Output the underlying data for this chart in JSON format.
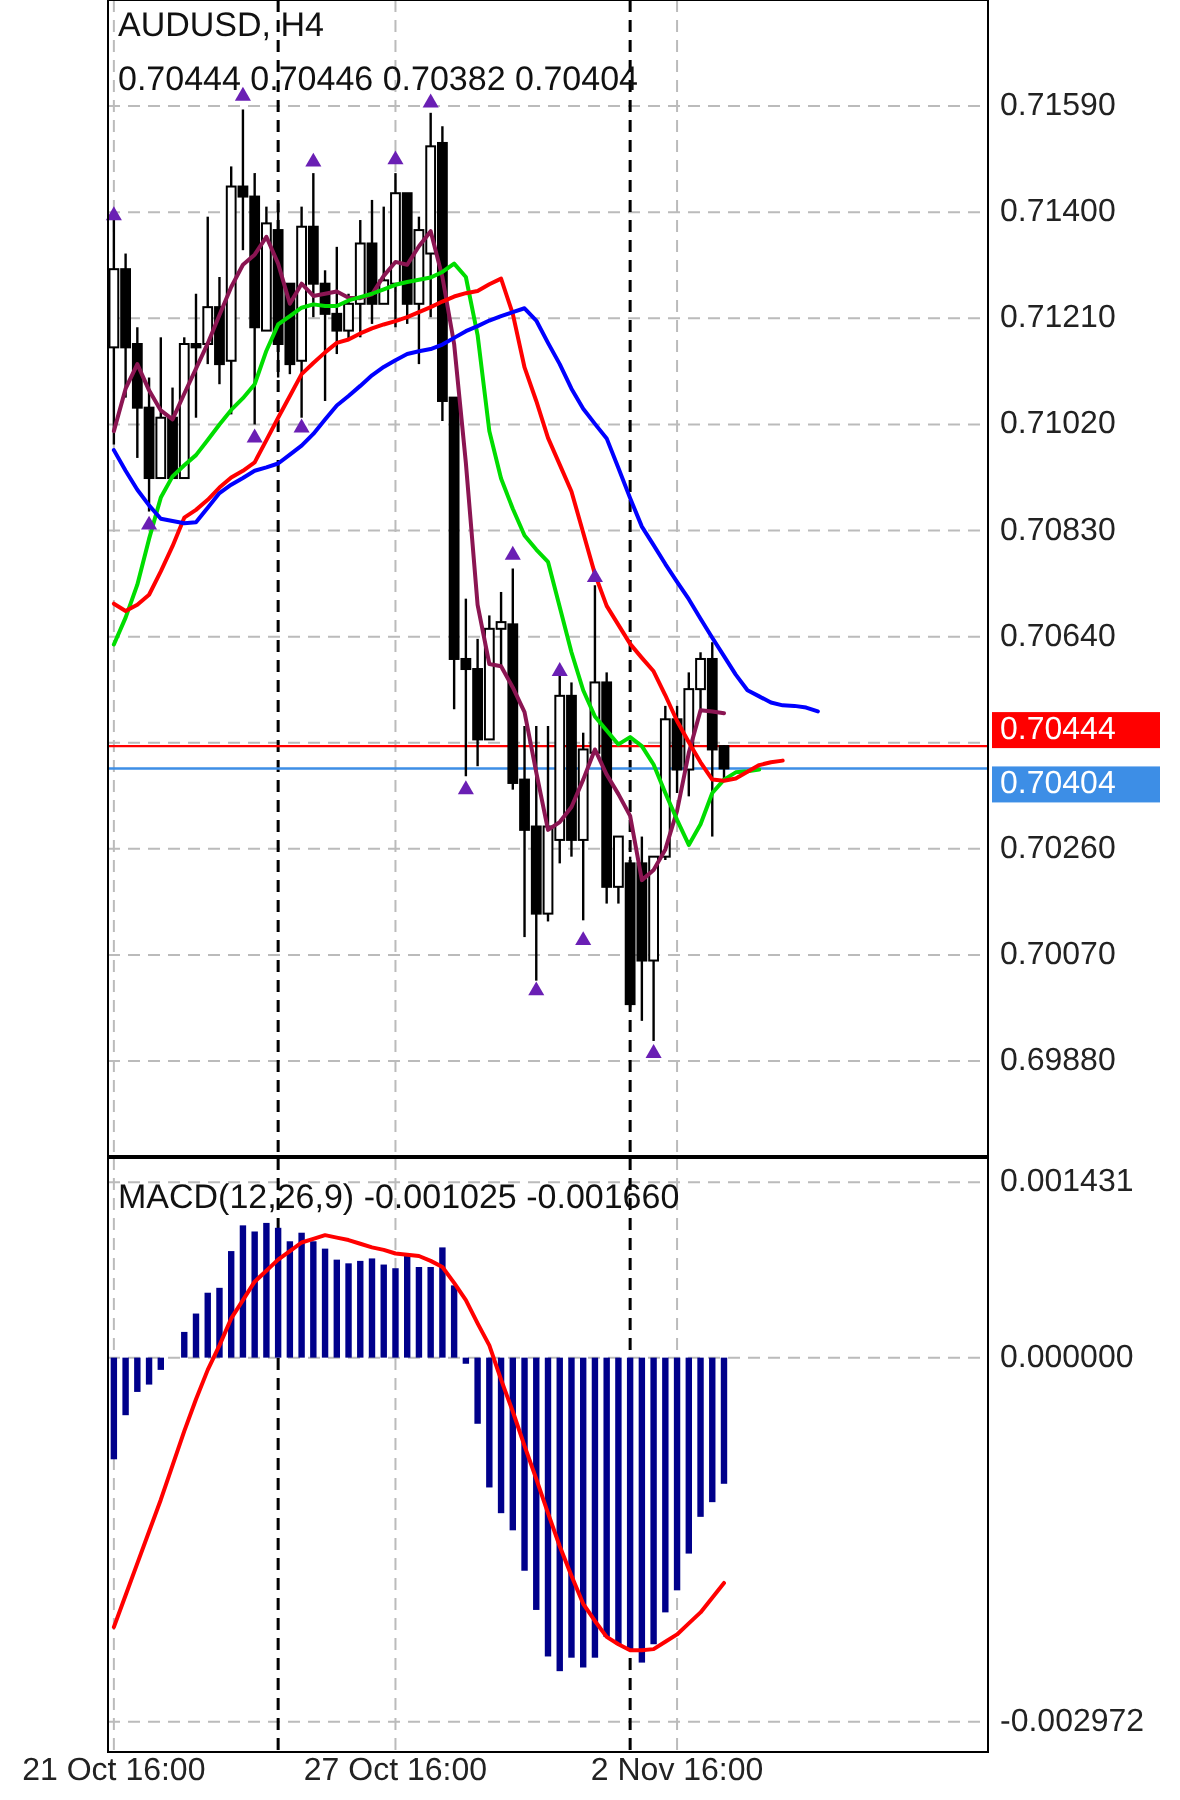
{
  "chart_data": [
    {
      "type": "candlestick",
      "title": "AUDUSD, H4",
      "subtitle": "0.70444 0.70446 0.70382 0.70404",
      "categories": [
        null,
        null,
        null,
        null,
        null,
        null,
        null,
        null,
        null,
        null,
        null,
        null,
        null,
        null,
        null,
        null,
        null,
        null,
        null,
        null,
        null,
        null,
        null,
        null,
        null,
        null,
        null,
        null,
        null,
        null,
        null,
        null,
        null,
        null,
        null,
        null,
        null,
        null,
        null,
        null,
        null,
        null,
        null,
        null,
        null,
        null,
        null,
        null,
        null,
        null,
        null,
        null,
        null,
        null,
        null,
        null,
        null,
        null,
        null,
        null,
        null
      ],
      "ohlc": [
        [
          0.71158,
          0.71392,
          0.70984,
          0.71298
        ],
        [
          0.71298,
          0.71326,
          0.71068,
          0.71158
        ],
        [
          0.71164,
          0.71194,
          0.7096,
          0.7105
        ],
        [
          0.7105,
          0.71104,
          0.70864,
          0.70924
        ],
        [
          0.70924,
          0.71176,
          0.70924,
          0.71032
        ],
        [
          0.71032,
          0.71086,
          0.70924,
          0.70924
        ],
        [
          0.70924,
          0.71176,
          0.70924,
          0.71164
        ],
        [
          0.71164,
          0.71254,
          0.71032,
          0.71158
        ],
        [
          0.71164,
          0.71392,
          0.71128,
          0.7123
        ],
        [
          0.7123,
          0.71284,
          0.71092,
          0.71128
        ],
        [
          0.71134,
          0.71482,
          0.71038,
          0.71446
        ],
        [
          0.71446,
          0.71584,
          0.71332,
          0.71428
        ],
        [
          0.71428,
          0.7147,
          0.7102,
          0.71194
        ],
        [
          0.71188,
          0.7141,
          0.71188,
          0.7138
        ],
        [
          0.71368,
          0.71416,
          0.71104,
          0.71164
        ],
        [
          0.71272,
          0.71272,
          0.7111,
          0.71128
        ],
        [
          0.71134,
          0.7141,
          0.71032,
          0.71374
        ],
        [
          0.71374,
          0.7147,
          0.71212,
          0.71272
        ],
        [
          0.71272,
          0.71296,
          0.71062,
          0.71218
        ],
        [
          0.71218,
          0.71338,
          0.71146,
          0.71188
        ],
        [
          0.71188,
          0.71254,
          0.7117,
          0.71236
        ],
        [
          0.71236,
          0.71386,
          0.71176,
          0.71344
        ],
        [
          0.71344,
          0.71422,
          0.712,
          0.71236
        ],
        [
          0.71236,
          0.7141,
          0.71236,
          0.71278
        ],
        [
          0.71272,
          0.7147,
          0.71194,
          0.71434
        ],
        [
          0.71434,
          0.71434,
          0.712,
          0.71236
        ],
        [
          0.71236,
          0.71392,
          0.71128,
          0.71368
        ],
        [
          0.71326,
          0.71578,
          0.71212,
          0.71518
        ],
        [
          0.71524,
          0.71554,
          0.71026,
          0.71062
        ],
        [
          0.71068,
          0.71068,
          0.7051,
          0.706
        ],
        [
          0.706,
          0.70708,
          0.7039,
          0.70582
        ],
        [
          0.70582,
          0.70636,
          0.70408,
          0.70456
        ],
        [
          0.70456,
          0.70678,
          0.70456,
          0.70654
        ],
        [
          0.70654,
          0.7072,
          0.70588,
          0.70666
        ],
        [
          0.70662,
          0.70762,
          0.70366,
          0.70378
        ],
        [
          0.70384,
          0.7048,
          0.70102,
          0.70294
        ],
        [
          0.703,
          0.7048,
          0.70024,
          0.70144
        ],
        [
          0.70144,
          0.7048,
          0.7013,
          0.703
        ],
        [
          0.70276,
          0.7057,
          0.70234,
          0.70534
        ],
        [
          0.70534,
          0.70558,
          0.70246,
          0.70276
        ],
        [
          0.70276,
          0.70468,
          0.70132,
          0.70438
        ],
        [
          0.70432,
          0.70732,
          0.70432,
          0.70558
        ],
        [
          0.70558,
          0.70576,
          0.70162,
          0.70192
        ],
        [
          0.70192,
          0.70282,
          0.70162,
          0.70282
        ],
        [
          0.70234,
          0.70246,
          0.69976,
          0.69982
        ],
        [
          0.70234,
          0.70282,
          0.69952,
          0.7006
        ],
        [
          0.7006,
          0.70246,
          0.69916,
          0.70246
        ],
        [
          0.70246,
          0.70516,
          0.7024,
          0.70492
        ],
        [
          0.70492,
          0.70516,
          0.7036,
          0.70402
        ],
        [
          0.70402,
          0.70576,
          0.70354,
          0.70546
        ],
        [
          0.70546,
          0.70612,
          0.7051,
          0.706
        ],
        [
          0.706,
          0.7063,
          0.70282,
          0.70438
        ],
        [
          0.70444,
          0.70446,
          0.70382,
          0.70404
        ],
        null,
        null,
        null,
        null,
        null,
        null,
        null,
        null
      ],
      "series": [
        {
          "type": "line",
          "color": "#8b1552",
          "values": [
            0.71008,
            0.71084,
            0.71128,
            0.71081,
            0.71045,
            0.71029,
            0.71075,
            0.7112,
            0.71165,
            0.71216,
            0.71266,
            0.71306,
            0.71324,
            0.71356,
            0.71308,
            0.71236,
            0.71272,
            0.7125,
            0.71254,
            0.71258,
            0.71247,
            0.71246,
            0.71253,
            0.71286,
            0.71311,
            0.71306,
            0.71339,
            0.71366,
            0.71284,
            0.71164,
            0.70951,
            0.70697,
            0.70591,
            0.70587,
            0.70549,
            0.70505,
            0.70397,
            0.70294,
            0.70308,
            0.70335,
            0.70384,
            0.70438,
            0.70393,
            0.70358,
            0.70319,
            0.70204,
            0.70222,
            0.70259,
            0.70328,
            0.70432,
            0.70508,
            0.70506,
            0.70503,
            null,
            null,
            null,
            null,
            null,
            null,
            null,
            null
          ]
        },
        {
          "type": "line",
          "color": "#00dd00",
          "values": [
            0.70626,
            0.70674,
            0.70733,
            0.70815,
            0.70889,
            0.70927,
            0.70947,
            0.70965,
            0.70992,
            0.7102,
            0.71046,
            0.71067,
            0.71092,
            0.71152,
            0.71199,
            0.71214,
            0.71229,
            0.71235,
            0.71232,
            0.71232,
            0.71242,
            0.71248,
            0.71254,
            0.71262,
            0.7127,
            0.71275,
            0.71279,
            0.71283,
            0.71293,
            0.71308,
            0.71284,
            0.7118,
            0.71008,
            0.70923,
            0.70869,
            0.70821,
            0.70796,
            0.70774,
            0.70693,
            0.70612,
            0.70544,
            0.70497,
            0.70472,
            0.70447,
            0.7046,
            0.70444,
            0.70411,
            0.7036,
            0.70312,
            0.70267,
            0.70304,
            0.7036,
            0.70384,
            0.70397,
            0.70399,
            0.70402,
            null,
            null,
            null,
            null,
            null
          ]
        },
        {
          "type": "line",
          "color": "#ff0000",
          "values": [
            0.70699,
            0.70686,
            0.70697,
            0.70715,
            0.70757,
            0.70802,
            0.70853,
            0.70867,
            0.70885,
            0.70907,
            0.70925,
            0.70937,
            0.70952,
            0.70992,
            0.71032,
            0.71071,
            0.7111,
            0.7113,
            0.71149,
            0.71166,
            0.71172,
            0.71183,
            0.71192,
            0.71199,
            0.71205,
            0.71212,
            0.71221,
            0.7123,
            0.7124,
            0.71249,
            0.71255,
            0.71259,
            0.71271,
            0.71281,
            0.71218,
            0.71122,
            0.71062,
            0.70996,
            0.70948,
            0.709,
            0.70826,
            0.70752,
            0.70695,
            0.70661,
            0.70627,
            0.70602,
            0.70578,
            0.70535,
            0.70489,
            0.70451,
            0.70415,
            0.70384,
            0.70382,
            0.70386,
            0.70398,
            0.7041,
            0.70415,
            0.70418,
            null,
            null,
            null
          ]
        },
        {
          "type": "line",
          "color": "#0000ff",
          "values": [
            0.70974,
            0.70937,
            0.70903,
            0.70875,
            0.70851,
            0.70847,
            0.70843,
            0.70845,
            0.70871,
            0.70897,
            0.70912,
            0.70924,
            0.70937,
            0.70943,
            0.7095,
            0.70966,
            0.70982,
            0.71003,
            0.71029,
            0.71054,
            0.71071,
            0.71089,
            0.71108,
            0.71123,
            0.71135,
            0.71146,
            0.71151,
            0.71155,
            0.71163,
            0.71175,
            0.71187,
            0.71196,
            0.71206,
            0.71214,
            0.71221,
            0.71228,
            0.71206,
            0.71166,
            0.71128,
            0.71084,
            0.71048,
            0.71021,
            0.70995,
            0.70942,
            0.70888,
            0.70837,
            0.70804,
            0.7077,
            0.70738,
            0.70707,
            0.70672,
            0.70638,
            0.70605,
            0.70572,
            0.70544,
            0.70533,
            0.70522,
            0.70517,
            0.70516,
            0.70513,
            0.70506
          ]
        },
        {
          "type": "scatter",
          "marker": "triangle",
          "color": "#6a1fb4",
          "values": [
            0.71394,
            null,
            null,
            null,
            null,
            null,
            null,
            null,
            null,
            null,
            null,
            0.71608,
            null,
            null,
            null,
            null,
            null,
            0.7149,
            null,
            null,
            null,
            null,
            null,
            null,
            0.71494,
            null,
            null,
            0.71596,
            null,
            null,
            null,
            null,
            null,
            null,
            0.70786,
            null,
            null,
            null,
            0.70578,
            null,
            null,
            0.70746,
            null,
            null,
            null,
            null,
            null,
            null,
            null,
            null,
            null,
            null,
            null,
            null,
            null,
            null,
            null,
            null,
            null,
            null,
            null
          ]
        },
        {
          "type": "scatter",
          "marker": "triangle",
          "color": "#6a1fb4",
          "values": [
            null,
            null,
            null,
            0.7084,
            null,
            null,
            null,
            null,
            null,
            null,
            null,
            null,
            0.70996,
            null,
            null,
            null,
            0.71014,
            null,
            null,
            null,
            null,
            null,
            null,
            null,
            null,
            null,
            null,
            null,
            null,
            null,
            0.70366,
            null,
            null,
            null,
            null,
            null,
            0.70006,
            null,
            null,
            null,
            0.70096,
            null,
            null,
            null,
            null,
            null,
            0.69894,
            null,
            null,
            null,
            null,
            null,
            null,
            null,
            null,
            null,
            null,
            null,
            null,
            null,
            null
          ]
        }
      ],
      "ylim": [
        0.6971,
        0.7178
      ],
      "yticks": [
        {
          "value": 0.6988,
          "label": "0.69880"
        },
        {
          "value": 0.7007,
          "label": "0.70070"
        },
        {
          "value": 0.7026,
          "label": "0.70260"
        },
        {
          "value": 0.7045,
          "label": null
        },
        {
          "value": 0.7064,
          "label": "0.70640"
        },
        {
          "value": 0.7083,
          "label": "0.70830"
        },
        {
          "value": 0.7102,
          "label": "0.71020"
        },
        {
          "value": 0.7121,
          "label": "0.71210"
        },
        {
          "value": 0.714,
          "label": "0.71400"
        },
        {
          "value": 0.7159,
          "label": "0.71590"
        }
      ],
      "grid": true,
      "ref_lines": [
        {
          "axis": "y",
          "value": 0.70444,
          "label": "0.70444",
          "color": "#ff0000"
        },
        {
          "axis": "y",
          "value": 0.70404,
          "label": "0.70404",
          "color": "#3d8ee6"
        }
      ]
    },
    {
      "type": "bar",
      "title": "MACD(12,26,9) -0.001025 -0.001660",
      "categories": [
        "21 Oct 16:00",
        null,
        null,
        null,
        null,
        null,
        null,
        null,
        null,
        null,
        null,
        null,
        null,
        null,
        null,
        null,
        null,
        null,
        null,
        null,
        null,
        null,
        null,
        null,
        "27 Oct 16:00",
        null,
        null,
        null,
        null,
        null,
        null,
        null,
        null,
        null,
        null,
        null,
        null,
        null,
        null,
        null,
        null,
        null,
        null,
        null,
        null,
        null,
        null,
        null,
        "2 Nov 16:00",
        null,
        null,
        null,
        null,
        null,
        null,
        null,
        null,
        null,
        null,
        null,
        null
      ],
      "series": [
        {
          "color": "#00008b",
          "values": [
            -0.00083,
            -0.00047,
            -0.00028,
            -0.00022,
            -0.0001,
            0,
            0.00021,
            0.00036,
            0.00053,
            0.00057,
            0.00087,
            0.00108,
            0.00103,
            0.0011,
            0.00106,
            0.00095,
            0.00102,
            0.00095,
            0.00089,
            0.0008,
            0.00077,
            0.00079,
            0.00081,
            0.00076,
            0.00073,
            0.00083,
            0.00074,
            0.00074,
            0.0009,
            0.00059,
            -5e-05,
            -0.00054,
            -0.00106,
            -0.00127,
            -0.00141,
            -0.00174,
            -0.00206,
            -0.00244,
            -0.00256,
            -0.00245,
            -0.00253,
            -0.00245,
            -0.00228,
            -0.00234,
            -0.00239,
            -0.00249,
            -0.00234,
            -0.00208,
            -0.0019,
            -0.0016,
            -0.0013,
            -0.00118,
            -0.00103,
            null,
            null,
            null,
            null,
            null,
            null,
            null,
            null
          ]
        },
        {
          "type": "line",
          "color": "#ff0000",
          "values": [
            -0.0022,
            -0.00194,
            -0.00168,
            -0.00142,
            -0.00116,
            -0.00088,
            -0.0006,
            -0.00034,
            -0.0001,
            0.0001,
            0.00032,
            0.00047,
            0.00062,
            0.00071,
            0.0008,
            0.00087,
            0.00094,
            0.00097,
            0.001,
            0.00098,
            0.00096,
            0.00093,
            0.0009,
            0.00088,
            0.00085,
            0.00084,
            0.00083,
            0.00079,
            0.00074,
            0.00061,
            0.00047,
            0.00028,
            0.0001,
            -0.00018,
            -0.00044,
            -0.00072,
            -0.00099,
            -0.00127,
            -0.00154,
            -0.00178,
            -0.00201,
            -0.00215,
            -0.00228,
            -0.00234,
            -0.00239,
            -0.00239,
            -0.00238,
            -0.00232,
            -0.00226,
            -0.00217,
            -0.00208,
            -0.00196,
            -0.00184,
            null,
            null,
            null,
            null,
            null,
            null,
            null,
            null
          ]
        }
      ],
      "ylim": [
        -0.00322,
        0.00163
      ],
      "yticks": [
        {
          "value": -0.002972,
          "label": "-0.002972"
        },
        {
          "value": 0,
          "label": "0.000000"
        },
        {
          "value": 0.001431,
          "label": "0.001431"
        }
      ],
      "grid": true
    }
  ]
}
